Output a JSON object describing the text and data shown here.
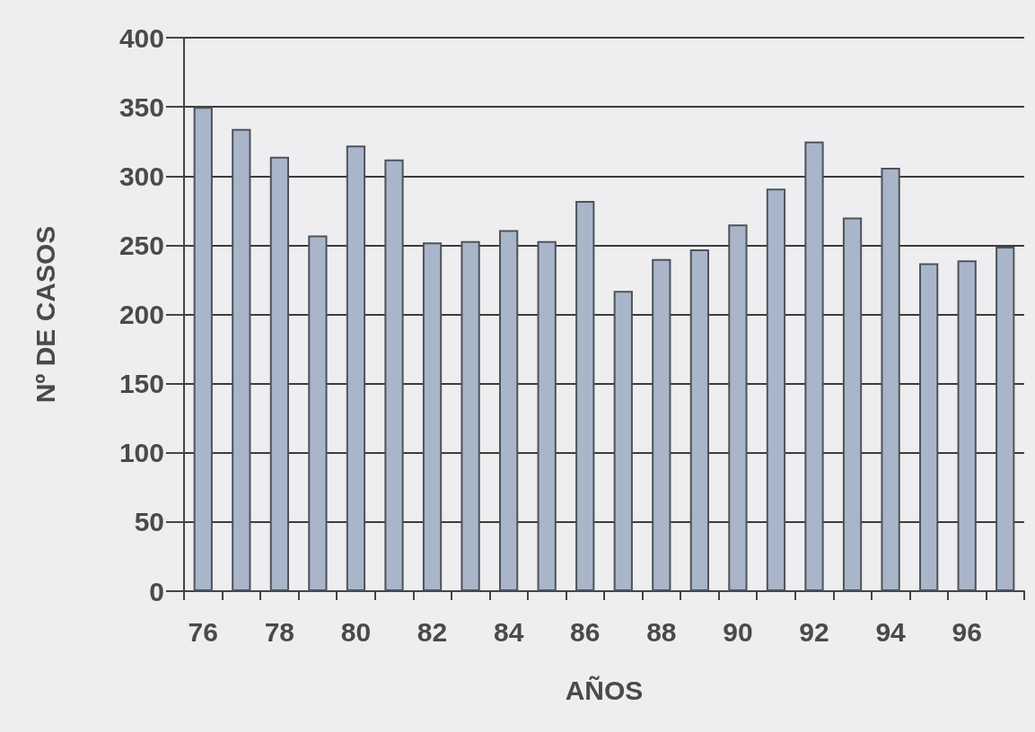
{
  "chart_data": {
    "type": "bar",
    "xlabel": "AÑOS",
    "ylabel": "Nº DE CASOS",
    "categories": [
      "76",
      null,
      "78",
      null,
      "80",
      null,
      "82",
      null,
      "84",
      null,
      "86",
      null,
      "88",
      null,
      "90",
      null,
      "92",
      null,
      "94",
      null,
      "96",
      null
    ],
    "values": [
      350,
      334,
      314,
      257,
      322,
      312,
      252,
      253,
      261,
      253,
      282,
      217,
      240,
      247,
      265,
      291,
      325,
      270,
      306,
      237,
      239,
      249
    ],
    "color": "#a9b6ca",
    "ylim": [
      0,
      400
    ],
    "yticks": [
      0,
      50,
      100,
      150,
      200,
      250,
      300,
      350,
      400
    ],
    "grid": "y"
  }
}
